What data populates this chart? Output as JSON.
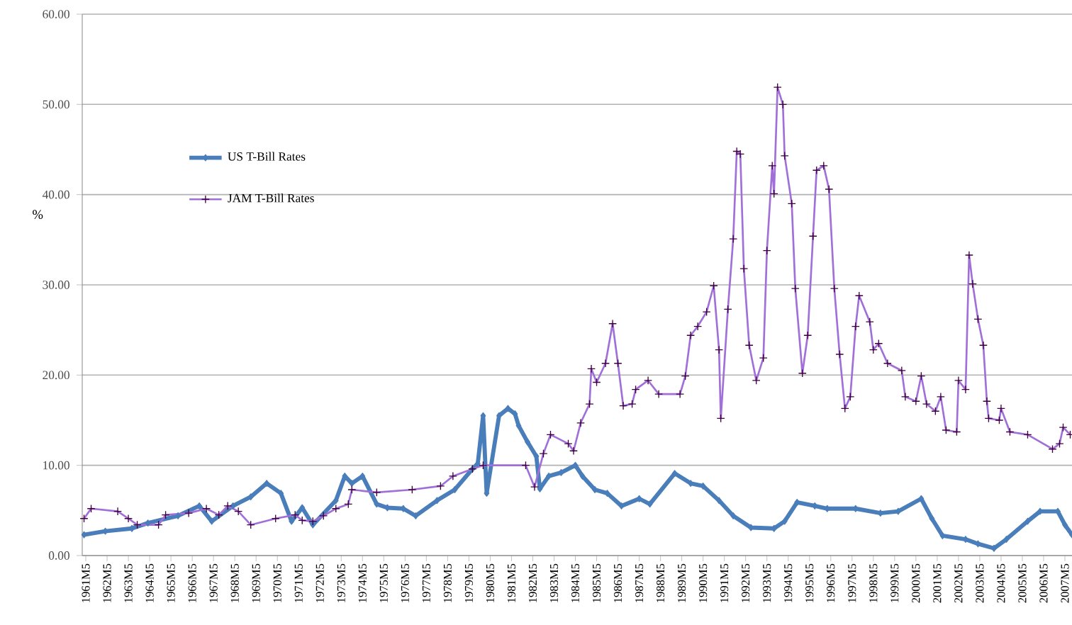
{
  "chart_data": {
    "type": "line",
    "ylabel": "%",
    "grid": "y",
    "legend": "top left",
    "line_style": "solid",
    "xlim": [
      "1961-03",
      "2007-09"
    ],
    "ylim": [
      0,
      60
    ],
    "yticks": [
      {
        "value": 0,
        "label": "0.00"
      },
      {
        "value": 10,
        "label": "10.00"
      },
      {
        "value": 20,
        "label": "20.00"
      },
      {
        "value": 30,
        "label": "30.00"
      },
      {
        "value": 40,
        "label": "40.00"
      },
      {
        "value": 50,
        "label": "50.00"
      },
      {
        "value": 60,
        "label": "60.00"
      }
    ],
    "xticks": [
      {
        "value": "1961-05",
        "label": "1961M5"
      },
      {
        "value": "1962-05",
        "label": "1962M5"
      },
      {
        "value": "1963-05",
        "label": "1963M5"
      },
      {
        "value": "1964-05",
        "label": "1964M5"
      },
      {
        "value": "1965-05",
        "label": "1965M5"
      },
      {
        "value": "1966-05",
        "label": "1966M5"
      },
      {
        "value": "1967-05",
        "label": "1967M5"
      },
      {
        "value": "1968-05",
        "label": "1968M5"
      },
      {
        "value": "1969-05",
        "label": "1969M5"
      },
      {
        "value": "1970-05",
        "label": "1970M5"
      },
      {
        "value": "1971-05",
        "label": "1971M5"
      },
      {
        "value": "1972-05",
        "label": "1972M5"
      },
      {
        "value": "1973-05",
        "label": "1973M5"
      },
      {
        "value": "1974-05",
        "label": "1974M5"
      },
      {
        "value": "1975-05",
        "label": "1975M5"
      },
      {
        "value": "1976-05",
        "label": "1976M5"
      },
      {
        "value": "1977-05",
        "label": "1977M5"
      },
      {
        "value": "1978-05",
        "label": "1978M5"
      },
      {
        "value": "1979-05",
        "label": "1979M5"
      },
      {
        "value": "1980-05",
        "label": "1980M5"
      },
      {
        "value": "1981-05",
        "label": "1981M5"
      },
      {
        "value": "1982-05",
        "label": "1982M5"
      },
      {
        "value": "1983-05",
        "label": "1983M5"
      },
      {
        "value": "1984-05",
        "label": "1984M5"
      },
      {
        "value": "1985-05",
        "label": "1985M5"
      },
      {
        "value": "1986-05",
        "label": "1986M5"
      },
      {
        "value": "1987-05",
        "label": "1987M5"
      },
      {
        "value": "1988-05",
        "label": "1988M5"
      },
      {
        "value": "1989-05",
        "label": "1989M5"
      },
      {
        "value": "1990-05",
        "label": "1990M5"
      },
      {
        "value": "1991-05",
        "label": "1991M5"
      },
      {
        "value": "1992-05",
        "label": "1992M5"
      },
      {
        "value": "1993-05",
        "label": "1993M5"
      },
      {
        "value": "1994-05",
        "label": "1994M5"
      },
      {
        "value": "1995-05",
        "label": "1995M5"
      },
      {
        "value": "1996-05",
        "label": "1996M5"
      },
      {
        "value": "1997-05",
        "label": "1997M5"
      },
      {
        "value": "1998-05",
        "label": "1998M5"
      },
      {
        "value": "1999-05",
        "label": "1999M5"
      },
      {
        "value": "2000-05",
        "label": "2000M5"
      },
      {
        "value": "2001-05",
        "label": "2001M5"
      },
      {
        "value": "2002-05",
        "label": "2002M5"
      },
      {
        "value": "2003-05",
        "label": "2003M5"
      },
      {
        "value": "2004-05",
        "label": "2004M5"
      },
      {
        "value": "2005-05",
        "label": "2005M5"
      },
      {
        "value": "2006-05",
        "label": "2006M5"
      },
      {
        "value": "2007-05",
        "label": "2007M5"
      }
    ],
    "series": [
      {
        "name": "US T-Bill Rates",
        "color": "#4a7ebb",
        "marker": "diamond",
        "x": [
          "1961-04",
          "1962-04",
          "1963-07",
          "1964-04",
          "1965-09",
          "1966-09",
          "1967-04",
          "1968-04",
          "1969-02",
          "1969-11",
          "1970-07",
          "1971-01",
          "1971-07",
          "1972-01",
          "1973-02",
          "1973-07",
          "1973-11",
          "1974-05",
          "1975-01",
          "1975-07",
          "1976-04",
          "1976-11",
          "1977-11",
          "1978-09",
          "1979-07",
          "1979-10",
          "1980-01",
          "1980-03",
          "1980-10",
          "1981-03",
          "1981-07",
          "1981-09",
          "1982-02",
          "1982-07",
          "1982-09",
          "1983-02",
          "1983-09",
          "1984-05",
          "1984-09",
          "1985-04",
          "1985-11",
          "1986-07",
          "1987-05",
          "1987-11",
          "1989-01",
          "1989-10",
          "1990-05",
          "1991-02",
          "1991-10",
          "1992-08",
          "1993-09",
          "1994-03",
          "1994-10",
          "1995-08",
          "1996-03",
          "1997-07",
          "1998-09",
          "1999-07",
          "2000-08",
          "2001-02",
          "2001-08",
          "2002-09",
          "2003-04",
          "2004-01",
          "2004-08",
          "2005-08",
          "2006-03",
          "2007-01",
          "2007-05",
          "2007-09"
        ],
        "values": [
          2.3,
          2.7,
          3.0,
          3.6,
          4.4,
          5.5,
          3.8,
          5.5,
          6.5,
          8.0,
          6.9,
          3.8,
          5.3,
          3.4,
          6.1,
          8.8,
          8.0,
          8.8,
          5.7,
          5.3,
          5.2,
          4.4,
          6.1,
          7.3,
          9.6,
          10.2,
          15.5,
          6.9,
          15.5,
          16.3,
          15.7,
          14.4,
          12.6,
          11.0,
          7.4,
          8.8,
          9.2,
          10.0,
          8.8,
          7.3,
          6.9,
          5.5,
          6.3,
          5.7,
          9.1,
          8.0,
          7.7,
          6.1,
          4.4,
          3.1,
          3.0,
          3.8,
          5.9,
          5.5,
          5.2,
          5.2,
          4.7,
          4.9,
          6.3,
          4.1,
          2.2,
          1.8,
          1.3,
          0.8,
          1.8,
          3.8,
          4.9,
          4.9,
          3.4,
          2.3
        ]
      },
      {
        "name": "JAM T-Bill Rates",
        "color": "#a070d8",
        "marker": "cross",
        "x": [
          "1961-04",
          "1961-08",
          "1962-11",
          "1963-05",
          "1963-10",
          "1964-10",
          "1965-02",
          "1966-03",
          "1967-01",
          "1967-08",
          "1968-01",
          "1968-07",
          "1969-02",
          "1970-04",
          "1971-03",
          "1971-07",
          "1972-01",
          "1972-07",
          "1973-02",
          "1973-09",
          "1973-11",
          "1975-01",
          "1976-09",
          "1978-01",
          "1978-08",
          "1979-07",
          "1980-01",
          "1982-01",
          "1982-06",
          "1982-11",
          "1983-03",
          "1984-01",
          "1984-04",
          "1984-08",
          "1985-01",
          "1985-02",
          "1985-05",
          "1985-10",
          "1986-02",
          "1986-05",
          "1986-08",
          "1987-01",
          "1987-03",
          "1987-10",
          "1988-04",
          "1989-04",
          "1989-07",
          "1989-10",
          "1990-02",
          "1990-07",
          "1990-11",
          "1991-02",
          "1991-03",
          "1991-07",
          "1991-10",
          "1991-12",
          "1992-02",
          "1992-04",
          "1992-07",
          "1992-11",
          "1993-03",
          "1993-05",
          "1993-08",
          "1993-09",
          "1993-11",
          "1994-02",
          "1994-03",
          "1994-07",
          "1994-09",
          "1995-01",
          "1995-04",
          "1995-07",
          "1995-09",
          "1996-01",
          "1996-04",
          "1996-07",
          "1996-10",
          "1997-01",
          "1997-04",
          "1997-07",
          "1997-09",
          "1998-03",
          "1998-05",
          "1998-08",
          "1999-01",
          "1999-09",
          "1999-11",
          "2000-05",
          "2000-08",
          "2000-11",
          "2001-04",
          "2001-07",
          "2001-10",
          "2002-04",
          "2002-05",
          "2002-09",
          "2002-11",
          "2003-01",
          "2003-04",
          "2003-07",
          "2003-09",
          "2003-10",
          "2004-04",
          "2004-05",
          "2004-10",
          "2005-08",
          "2006-10",
          "2007-02",
          "2007-04",
          "2007-08"
        ],
        "values": [
          4.1,
          5.2,
          4.9,
          4.1,
          3.4,
          3.4,
          4.5,
          4.7,
          5.2,
          4.5,
          5.5,
          4.9,
          3.4,
          4.1,
          4.5,
          3.9,
          3.8,
          4.4,
          5.2,
          5.7,
          7.3,
          7.0,
          7.3,
          7.7,
          8.8,
          9.6,
          10.0,
          10.0,
          7.6,
          11.3,
          13.4,
          12.4,
          11.6,
          14.7,
          16.8,
          20.7,
          19.2,
          21.3,
          25.7,
          21.3,
          16.6,
          16.8,
          18.4,
          19.4,
          17.9,
          17.9,
          19.9,
          24.4,
          25.4,
          27.0,
          29.9,
          22.8,
          15.2,
          27.3,
          35.1,
          44.8,
          44.5,
          31.8,
          23.3,
          19.4,
          21.9,
          33.8,
          43.2,
          40.1,
          51.9,
          50.0,
          44.3,
          39.0,
          29.6,
          20.2,
          24.4,
          35.4,
          42.7,
          43.2,
          40.6,
          29.6,
          22.3,
          16.3,
          17.6,
          25.4,
          28.8,
          25.9,
          22.8,
          23.5,
          21.3,
          20.5,
          17.6,
          17.1,
          19.9,
          16.8,
          16.0,
          17.6,
          13.9,
          13.7,
          19.4,
          18.4,
          33.3,
          30.1,
          26.2,
          23.3,
          17.1,
          15.2,
          15.0,
          16.3,
          13.7,
          13.4,
          11.8,
          12.4,
          14.2,
          13.4
        ]
      }
    ]
  }
}
